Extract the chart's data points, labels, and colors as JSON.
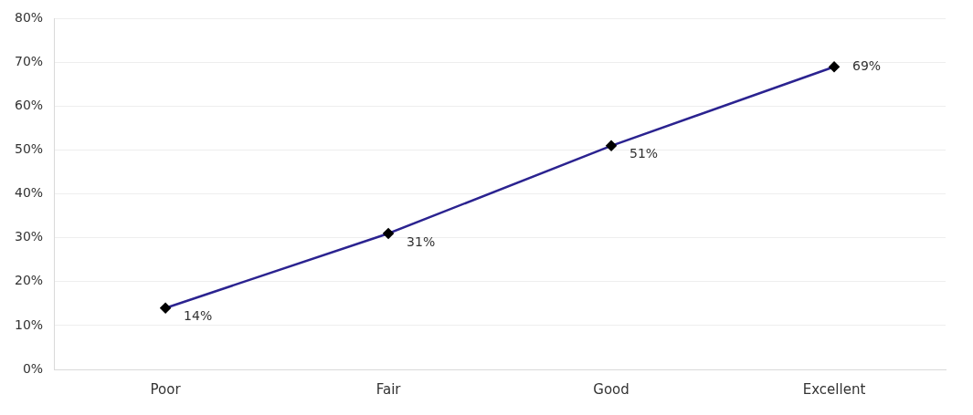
{
  "chart_data": {
    "type": "line",
    "categories": [
      "Poor",
      "Fair",
      "Good",
      "Excellent"
    ],
    "series": [
      {
        "color": "#2b2390",
        "values": [
          14,
          31,
          51,
          69
        ],
        "value_labels": [
          "14%",
          "31%",
          "51%",
          "69%"
        ]
      }
    ],
    "ylim": [
      0,
      80
    ],
    "yticks": [
      {
        "value": 0,
        "label": "0%"
      },
      {
        "value": 10,
        "label": "10%"
      },
      {
        "value": 20,
        "label": "20%"
      },
      {
        "value": 30,
        "label": "30%"
      },
      {
        "value": 40,
        "label": "40%"
      },
      {
        "value": 50,
        "label": "50%"
      },
      {
        "value": 60,
        "label": "60%"
      },
      {
        "value": 70,
        "label": "70%"
      },
      {
        "value": 80,
        "label": "80%"
      }
    ],
    "grid": "y",
    "legend": false,
    "marker": "diamond",
    "line_style": "solid"
  }
}
